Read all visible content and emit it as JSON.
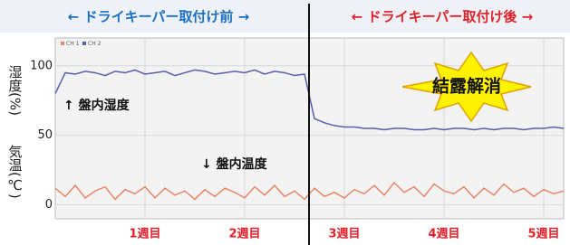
{
  "chart_data": {
    "type": "line",
    "header_left": "← ドライキーパー取付け前 →",
    "header_right": "← ドライキーパー取付け後 →",
    "y_label_humidity": "湿度(%)",
    "y_label_temperature": "気温(℃)",
    "annotations": [
      "↑ 盤内湿度",
      "↓ 盤内温度",
      "結露解消"
    ],
    "x": [
      0.1,
      0.2,
      0.3,
      0.4,
      0.5,
      0.6,
      0.7,
      0.8,
      0.9,
      1.0,
      1.1,
      1.2,
      1.3,
      1.4,
      1.5,
      1.6,
      1.7,
      1.8,
      1.9,
      2.0,
      2.1,
      2.2,
      2.3,
      2.4,
      2.5,
      2.6,
      2.7,
      2.8,
      2.9,
      3.0,
      3.1,
      3.2,
      3.3,
      3.4,
      3.5,
      3.6,
      3.7,
      3.8,
      3.9,
      4.0,
      4.1,
      4.2,
      4.3,
      4.4,
      4.5,
      4.6,
      4.7,
      4.8,
      4.9,
      5.0,
      5.1,
      5.2
    ],
    "series": [
      {
        "name": "CH 1",
        "color": "#e8866a",
        "values": [
          12,
          6,
          14,
          5,
          10,
          13,
          4,
          11,
          8,
          13,
          5,
          12,
          7,
          10,
          4,
          11,
          6,
          12,
          9,
          5,
          13,
          7,
          14,
          6,
          10,
          4,
          12,
          6,
          9,
          5,
          11,
          8,
          14,
          7,
          16,
          9,
          13,
          6,
          15,
          10,
          8,
          13,
          5,
          12,
          7,
          15,
          9,
          12,
          6,
          11,
          8,
          10
        ]
      },
      {
        "name": "CH 2",
        "color": "#5a5ea8",
        "values": [
          80,
          95,
          94,
          96,
          95,
          93,
          96,
          95,
          97,
          94,
          95,
          96,
          93,
          95,
          97,
          96,
          94,
          95,
          96,
          95,
          97,
          94,
          96,
          95,
          93,
          94,
          62,
          59,
          57,
          56,
          56,
          55,
          55,
          54,
          55,
          55,
          54,
          54,
          55,
          54,
          55,
          55,
          54,
          55,
          54,
          55,
          55,
          54,
          55,
          55,
          56,
          55
        ]
      }
    ],
    "xlim": [
      0.1,
      5.2
    ],
    "xticks": [
      {
        "value": 1,
        "label": "1週目"
      },
      {
        "value": 2,
        "label": "2週目"
      },
      {
        "value": 3,
        "label": "3週目"
      },
      {
        "value": 4,
        "label": "4週目"
      },
      {
        "value": 5,
        "label": "5週目"
      }
    ],
    "ylim": [
      -10,
      120
    ],
    "yticks": [
      0,
      50,
      100
    ],
    "grid": true
  }
}
